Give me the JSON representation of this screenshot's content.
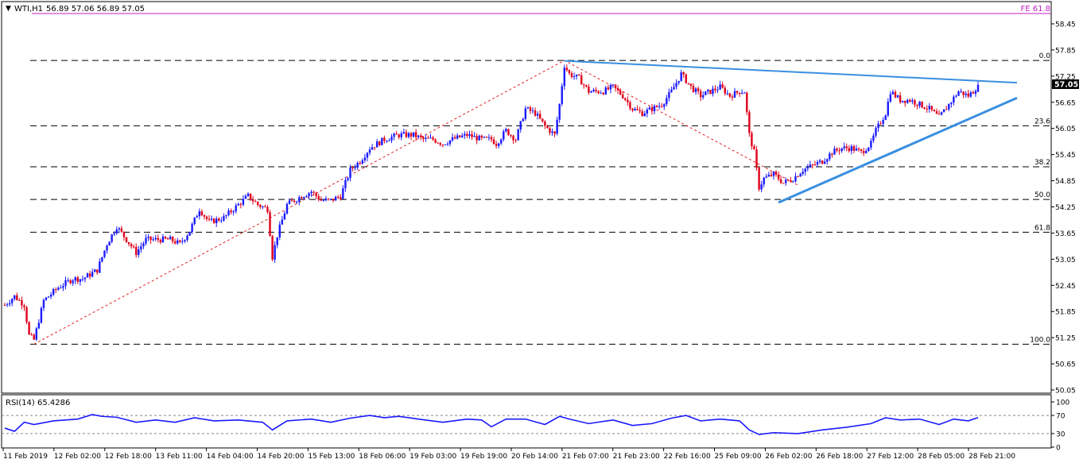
{
  "header": {
    "symbol": "WTI,H1",
    "ohlc": "56.89 57.06 56.89 57.05",
    "fe_label": "FE 61.8"
  },
  "price_axis": {
    "ticks": [
      "58.45",
      "57.85",
      "57.25",
      "56.65",
      "56.05",
      "55.45",
      "54.85",
      "54.25",
      "53.65",
      "53.05",
      "52.45",
      "51.85",
      "51.25",
      "50.65",
      "50.05"
    ],
    "current_price": "57.05"
  },
  "fib_levels": [
    {
      "label": "0.0",
      "value": 57.61
    },
    {
      "label": "23.6",
      "value": 56.11
    },
    {
      "label": "38.2",
      "value": 55.17
    },
    {
      "label": "50.0",
      "value": 54.42
    },
    {
      "label": "61.8",
      "value": 53.67
    },
    {
      "label": "100.0",
      "value": 51.1
    }
  ],
  "x_axis": {
    "labels": [
      "11 Feb 2019",
      "12 Feb 02:00",
      "12 Feb 18:00",
      "13 Feb 11:00",
      "14 Feb 04:00",
      "14 Feb 20:00",
      "15 Feb 13:00",
      "18 Feb 06:00",
      "19 Feb 03:00",
      "19 Feb 19:00",
      "20 Feb 14:00",
      "21 Feb 07:00",
      "21 Feb 23:00",
      "22 Feb 16:00",
      "25 Feb 09:00",
      "26 Feb 02:00",
      "26 Feb 18:00",
      "27 Feb 12:00",
      "28 Feb 05:00",
      "28 Feb 21:00"
    ]
  },
  "rsi": {
    "label": "RSI(14) 65.4286",
    "ticks": [
      "100",
      "70",
      "30",
      "0"
    ]
  },
  "colors": {
    "bull": "#1a1aff",
    "bear": "#e0001a",
    "trendline": "#3a8fe0",
    "fib_dash": "#e02020",
    "rsi_line": "#1a1aff",
    "fe_line": "#c020c0",
    "price_badge": "#000000"
  },
  "chart_data": [
    {
      "type": "candlestick",
      "title": "WTI,H1",
      "y_range": [
        50.0,
        58.75
      ],
      "y_ticks": [
        58.45,
        57.85,
        57.25,
        56.65,
        56.05,
        55.45,
        54.85,
        54.25,
        53.65,
        53.05,
        52.45,
        51.85,
        51.25,
        50.65,
        50.05
      ],
      "x_labels": [
        "11 Feb 2019",
        "12 Feb 02:00",
        "12 Feb 18:00",
        "13 Feb 11:00",
        "14 Feb 04:00",
        "14 Feb 20:00",
        "15 Feb 13:00",
        "18 Feb 06:00",
        "19 Feb 03:00",
        "19 Feb 19:00",
        "20 Feb 14:00",
        "21 Feb 07:00",
        "21 Feb 23:00",
        "22 Feb 16:00",
        "25 Feb 09:00",
        "26 Feb 02:00",
        "26 Feb 18:00",
        "27 Feb 12:00",
        "28 Feb 05:00",
        "28 Feb 21:00"
      ],
      "last": {
        "open": 56.89,
        "high": 57.06,
        "low": 56.89,
        "close": 57.05
      },
      "close_path": [
        [
          0,
          52.0
        ],
        [
          4,
          52.2
        ],
        [
          8,
          52.0
        ],
        [
          10,
          51.3
        ],
        [
          12,
          51.2
        ],
        [
          16,
          52.1
        ],
        [
          22,
          52.4
        ],
        [
          28,
          52.6
        ],
        [
          32,
          52.6
        ],
        [
          38,
          52.8
        ],
        [
          42,
          53.4
        ],
        [
          46,
          53.8
        ],
        [
          50,
          53.5
        ],
        [
          54,
          53.2
        ],
        [
          58,
          53.5
        ],
        [
          62,
          53.5
        ],
        [
          68,
          53.5
        ],
        [
          72,
          53.4
        ],
        [
          76,
          53.7
        ],
        [
          80,
          54.2
        ],
        [
          84,
          53.9
        ],
        [
          90,
          54.0
        ],
        [
          96,
          54.3
        ],
        [
          100,
          54.5
        ],
        [
          104,
          54.3
        ],
        [
          108,
          54.2
        ],
        [
          110,
          53.1
        ],
        [
          112,
          53.6
        ],
        [
          116,
          54.3
        ],
        [
          122,
          54.5
        ],
        [
          126,
          54.6
        ],
        [
          130,
          54.4
        ],
        [
          134,
          54.4
        ],
        [
          138,
          54.5
        ],
        [
          142,
          55.1
        ],
        [
          146,
          55.3
        ],
        [
          150,
          55.6
        ],
        [
          156,
          55.8
        ],
        [
          162,
          55.9
        ],
        [
          168,
          55.9
        ],
        [
          172,
          55.8
        ],
        [
          176,
          55.8
        ],
        [
          180,
          55.7
        ],
        [
          184,
          55.8
        ],
        [
          190,
          55.9
        ],
        [
          196,
          55.8
        ],
        [
          200,
          55.8
        ],
        [
          202,
          55.7
        ],
        [
          206,
          56.0
        ],
        [
          210,
          55.8
        ],
        [
          214,
          56.5
        ],
        [
          218,
          56.4
        ],
        [
          222,
          56.1
        ],
        [
          226,
          55.9
        ],
        [
          228,
          56.6
        ],
        [
          230,
          57.5
        ],
        [
          232,
          57.3
        ],
        [
          236,
          57.2
        ],
        [
          240,
          56.9
        ],
        [
          246,
          56.9
        ],
        [
          250,
          57.0
        ],
        [
          254,
          56.8
        ],
        [
          258,
          56.5
        ],
        [
          262,
          56.4
        ],
        [
          266,
          56.5
        ],
        [
          270,
          56.6
        ],
        [
          274,
          56.9
        ],
        [
          278,
          57.3
        ],
        [
          282,
          57.0
        ],
        [
          286,
          56.8
        ],
        [
          290,
          56.9
        ],
        [
          294,
          57.0
        ],
        [
          298,
          56.8
        ],
        [
          302,
          56.9
        ],
        [
          304,
          56.9
        ],
        [
          306,
          55.9
        ],
        [
          308,
          55.5
        ],
        [
          310,
          54.7
        ],
        [
          312,
          54.9
        ],
        [
          316,
          55.0
        ],
        [
          320,
          54.8
        ],
        [
          324,
          54.9
        ],
        [
          328,
          55.1
        ],
        [
          332,
          55.2
        ],
        [
          336,
          55.3
        ],
        [
          340,
          55.5
        ],
        [
          344,
          55.6
        ],
        [
          348,
          55.6
        ],
        [
          352,
          55.5
        ],
        [
          356,
          55.7
        ],
        [
          358,
          56.0
        ],
        [
          362,
          56.4
        ],
        [
          364,
          56.9
        ],
        [
          368,
          56.7
        ],
        [
          372,
          56.7
        ],
        [
          376,
          56.6
        ],
        [
          380,
          56.5
        ],
        [
          384,
          56.3
        ],
        [
          388,
          56.6
        ],
        [
          392,
          56.9
        ],
        [
          396,
          56.8
        ],
        [
          398,
          56.9
        ],
        [
          400,
          57.05
        ]
      ],
      "fibonacci": {
        "from": {
          "bar": 12,
          "price": 51.1
        },
        "to": {
          "bar": 230,
          "price": 57.61
        },
        "levels": {
          "0.0": 57.61,
          "23.6": 56.11,
          "38.2": 55.17,
          "50.0": 54.42,
          "61.8": 53.67,
          "100.0": 51.1
        }
      },
      "fe_level": {
        "label": "FE 61.8",
        "price": 58.75
      },
      "trendlines": [
        {
          "name": "resistance",
          "from": {
            "bar": 230,
            "price": 57.6
          },
          "to": {
            "bar": 416,
            "price": 57.1
          }
        },
        {
          "name": "support",
          "from": {
            "bar": 318,
            "price": 54.35
          },
          "to": {
            "bar": 416,
            "price": 56.75
          }
        }
      ],
      "retracement_path": [
        [
          12,
          51.1
        ],
        [
          230,
          57.61
        ],
        [
          326,
          54.75
        ]
      ]
    },
    {
      "type": "line",
      "title": "RSI(14) 65.4286",
      "y_range": [
        0,
        100
      ],
      "y_ticks": [
        100,
        70,
        30,
        0
      ],
      "levels": [
        70,
        30
      ],
      "series": [
        {
          "name": "RSI(14)",
          "value_last": 65.4286,
          "values_path": [
            [
              0,
              42
            ],
            [
              4,
              35
            ],
            [
              8,
              55
            ],
            [
              12,
              50
            ],
            [
              20,
              58
            ],
            [
              30,
              62
            ],
            [
              36,
              72
            ],
            [
              40,
              68
            ],
            [
              46,
              66
            ],
            [
              54,
              55
            ],
            [
              62,
              60
            ],
            [
              70,
              55
            ],
            [
              78,
              65
            ],
            [
              86,
              58
            ],
            [
              96,
              60
            ],
            [
              106,
              55
            ],
            [
              110,
              38
            ],
            [
              116,
              58
            ],
            [
              126,
              62
            ],
            [
              134,
              55
            ],
            [
              142,
              64
            ],
            [
              150,
              70
            ],
            [
              156,
              65
            ],
            [
              162,
              68
            ],
            [
              170,
              62
            ],
            [
              180,
              55
            ],
            [
              190,
              62
            ],
            [
              196,
              60
            ],
            [
              200,
              45
            ],
            [
              206,
              62
            ],
            [
              214,
              62
            ],
            [
              222,
              50
            ],
            [
              228,
              68
            ],
            [
              232,
              62
            ],
            [
              240,
              52
            ],
            [
              250,
              60
            ],
            [
              258,
              48
            ],
            [
              266,
              52
            ],
            [
              274,
              64
            ],
            [
              280,
              70
            ],
            [
              286,
              58
            ],
            [
              294,
              62
            ],
            [
              302,
              58
            ],
            [
              306,
              38
            ],
            [
              310,
              28
            ],
            [
              316,
              32
            ],
            [
              326,
              30
            ],
            [
              336,
              38
            ],
            [
              346,
              44
            ],
            [
              356,
              52
            ],
            [
              362,
              65
            ],
            [
              368,
              60
            ],
            [
              376,
              62
            ],
            [
              384,
              50
            ],
            [
              390,
              62
            ],
            [
              396,
              58
            ],
            [
              400,
              65.4286
            ]
          ]
        }
      ]
    }
  ]
}
